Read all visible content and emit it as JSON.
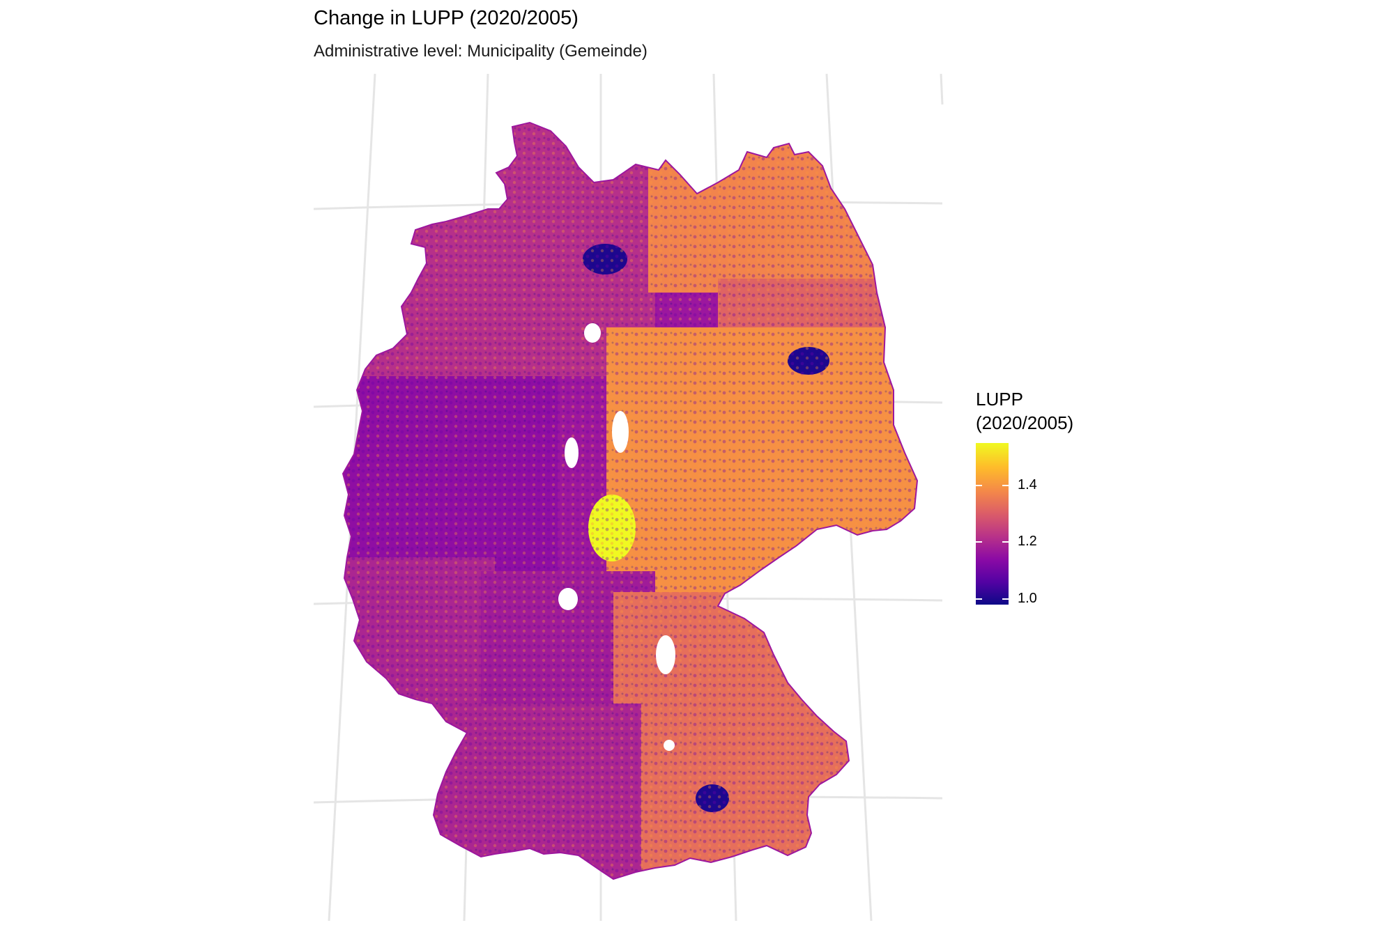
{
  "title": "Change in LUPP (2020/2005)",
  "subtitle": "Administrative level: Municipality (Gemeinde)",
  "legend": {
    "title_line1": "LUPP",
    "title_line2": "(2020/2005)",
    "ticks": [
      {
        "value": 1.0,
        "label": "1.0"
      },
      {
        "value": 1.2,
        "label": "1.2"
      },
      {
        "value": 1.4,
        "label": "1.4"
      }
    ],
    "range": [
      0.98,
      1.55
    ],
    "colors": [
      "#0d0887",
      "#5302a3",
      "#8b0aa5",
      "#b83289",
      "#db5c68",
      "#f48849",
      "#febc2a",
      "#f0f921"
    ]
  },
  "regions": {
    "north_west": 1.22,
    "hamburg": 1.0,
    "mecklenburg": 1.38,
    "brandenburg": 1.32,
    "berlin": 1.0,
    "north_rhine_westphalia": 1.15,
    "central_east": 1.4,
    "thuringia_yellow": 1.55,
    "rhineland": 1.2,
    "hesse": 1.18,
    "bavaria": 1.34,
    "baden_wuerttemberg": 1.2,
    "munich": 1.0
  }
}
